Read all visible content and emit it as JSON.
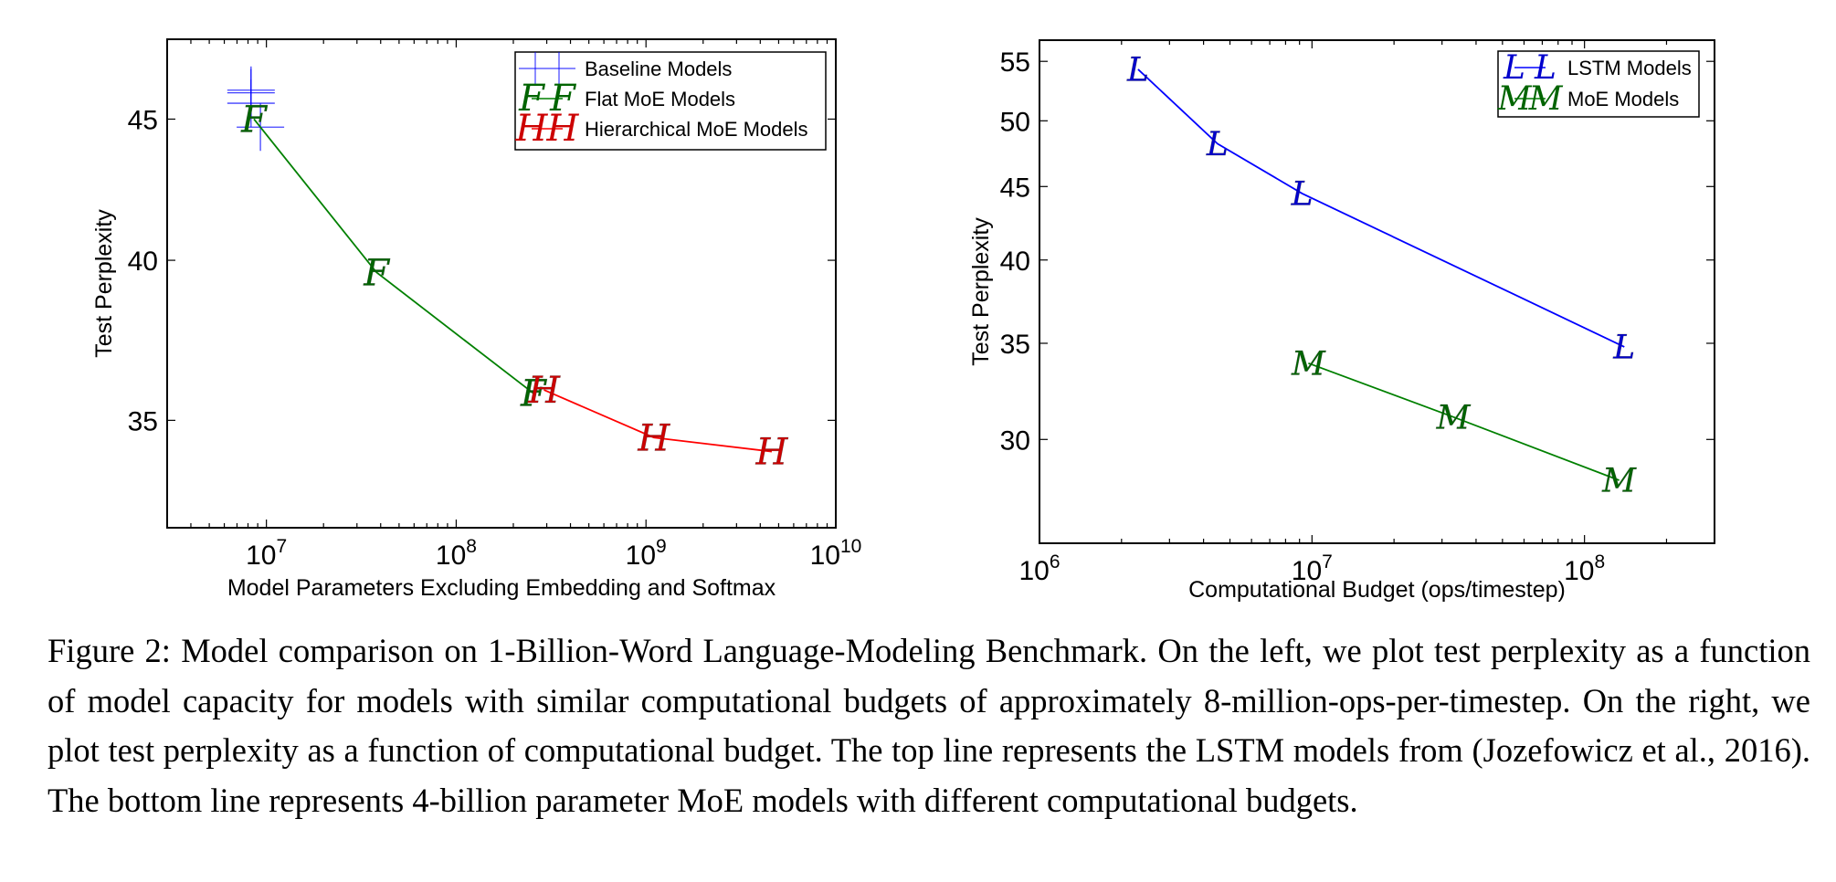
{
  "chart_data": [
    {
      "type": "line",
      "id": "left",
      "title": "",
      "xlabel": "Model Parameters Excluding Embedding and Softmax",
      "ylabel": "Test Perplexity",
      "xscale": "log",
      "yscale": "log",
      "xlim": [
        3000000,
        10000000000
      ],
      "ylim": [
        32,
        48.1
      ],
      "xticks": [
        {
          "value": 10000000,
          "base": "10",
          "exp": "7"
        },
        {
          "value": 100000000,
          "base": "10",
          "exp": "8"
        },
        {
          "value": 1000000000,
          "base": "10",
          "exp": "9"
        },
        {
          "value": 10000000000,
          "base": "10",
          "exp": "10"
        }
      ],
      "yticks": [
        {
          "value": 35,
          "label": "35"
        },
        {
          "value": 40,
          "label": "40"
        },
        {
          "value": 45,
          "label": "45"
        }
      ],
      "grid": false,
      "legend_position": "top-right",
      "series": [
        {
          "name": "Baseline Models",
          "marker": "+",
          "color": "#0000ff",
          "line": false,
          "points": [
            {
              "x": 8300000,
              "y": 46.1
            },
            {
              "x": 8300000,
              "y": 46.0
            },
            {
              "x": 8300000,
              "y": 45.6
            },
            {
              "x": 9300000,
              "y": 44.7
            }
          ]
        },
        {
          "name": "Flat MoE Models",
          "marker": "F",
          "color": "#008000",
          "marker_color": "#006400",
          "line": true,
          "points": [
            {
              "x": 8600000,
              "y": 45.0
            },
            {
              "x": 38000000,
              "y": 39.6
            },
            {
              "x": 255000000,
              "y": 35.8
            }
          ]
        },
        {
          "name": "Hierarchical MoE Models",
          "marker": "H",
          "color": "#ff0000",
          "marker_color": "#cc0000",
          "line": true,
          "points": [
            {
              "x": 290000000,
              "y": 35.9
            },
            {
              "x": 1100000000,
              "y": 34.5
            },
            {
              "x": 4600000000,
              "y": 34.1
            }
          ]
        }
      ]
    },
    {
      "type": "line",
      "id": "right",
      "title": "",
      "xlabel": "Computational Budget (ops/timestep)",
      "ylabel": "Test Perplexity",
      "xscale": "log",
      "yscale": "log",
      "xlim": [
        1000000,
        300000000
      ],
      "ylim": [
        25.4,
        56.9
      ],
      "xticks": [
        {
          "value": 1000000,
          "base": "10",
          "exp": "6"
        },
        {
          "value": 10000000,
          "base": "10",
          "exp": "7"
        },
        {
          "value": 100000000,
          "base": "10",
          "exp": "8"
        }
      ],
      "yticks": [
        {
          "value": 30,
          "label": "30"
        },
        {
          "value": 35,
          "label": "35"
        },
        {
          "value": 40,
          "label": "40"
        },
        {
          "value": 45,
          "label": "45"
        },
        {
          "value": 50,
          "label": "50"
        },
        {
          "value": 55,
          "label": "55"
        }
      ],
      "grid": false,
      "legend_position": "top-right",
      "series": [
        {
          "name": "LSTM Models",
          "marker": "L",
          "color": "#0000ff",
          "marker_color": "#0000cc",
          "line": true,
          "points": [
            {
              "x": 2300000,
              "y": 54.3
            },
            {
              "x": 4500000,
              "y": 48.2
            },
            {
              "x": 9200000,
              "y": 44.5
            },
            {
              "x": 140000000,
              "y": 34.8
            }
          ]
        },
        {
          "name": "MoE Models",
          "marker": "M",
          "color": "#008000",
          "marker_color": "#006400",
          "line": true,
          "points": [
            {
              "x": 9700000,
              "y": 33.9
            },
            {
              "x": 33000000,
              "y": 31.1
            },
            {
              "x": 134000000,
              "y": 28.1
            }
          ]
        }
      ]
    }
  ],
  "caption": "Figure 2: Model comparison on 1-Billion-Word Language-Modeling Benchmark. On the left, we plot test perplexity as a function of model capacity for models with similar computational budgets of approximately 8-million-ops-per-timestep. On the right, we plot test perplexity as a function of computational budget. The top line represents the LSTM models from (Jozefowicz et al., 2016). The bottom line represents 4-billion parameter MoE models with different computational budgets."
}
